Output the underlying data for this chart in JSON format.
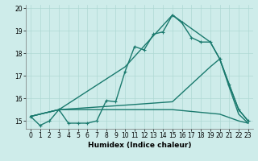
{
  "xlabel": "Humidex (Indice chaleur)",
  "xlim": [
    -0.5,
    23.5
  ],
  "ylim": [
    14.65,
    20.15
  ],
  "yticks": [
    15,
    16,
    17,
    18,
    19,
    20
  ],
  "xticks": [
    0,
    1,
    2,
    3,
    4,
    5,
    6,
    7,
    8,
    9,
    10,
    11,
    12,
    13,
    14,
    15,
    16,
    17,
    18,
    19,
    20,
    21,
    22,
    23
  ],
  "bg_color": "#ceecea",
  "grid_color": "#afd8d4",
  "line_color": "#1a7a6e",
  "lines": [
    {
      "x": [
        0,
        1,
        2,
        3,
        4,
        5,
        6,
        7,
        8,
        9,
        10,
        11,
        12,
        13,
        14,
        15,
        16,
        17,
        18,
        19,
        20,
        21,
        22,
        23
      ],
      "y": [
        15.2,
        14.8,
        15.0,
        15.5,
        14.9,
        14.9,
        14.9,
        15.0,
        15.9,
        15.85,
        17.2,
        18.3,
        18.15,
        18.85,
        18.95,
        19.7,
        19.35,
        18.7,
        18.5,
        18.5,
        17.75,
        16.6,
        15.5,
        15.0
      ],
      "marker": "+",
      "lw": 1.0
    },
    {
      "x": [
        0,
        3,
        10,
        15,
        19,
        20,
        22,
        23
      ],
      "y": [
        15.2,
        15.5,
        17.4,
        19.7,
        18.5,
        17.75,
        15.5,
        15.0
      ],
      "marker": null,
      "lw": 1.0
    },
    {
      "x": [
        0,
        3,
        10,
        15,
        20,
        22,
        23
      ],
      "y": [
        15.2,
        15.5,
        15.5,
        15.5,
        15.3,
        15.0,
        14.9
      ],
      "marker": null,
      "lw": 1.0
    },
    {
      "x": [
        0,
        3,
        10,
        15,
        19,
        20,
        21,
        22,
        23
      ],
      "y": [
        15.2,
        15.5,
        15.7,
        15.85,
        17.4,
        17.75,
        16.5,
        15.3,
        14.9
      ],
      "marker": null,
      "lw": 1.0
    }
  ]
}
